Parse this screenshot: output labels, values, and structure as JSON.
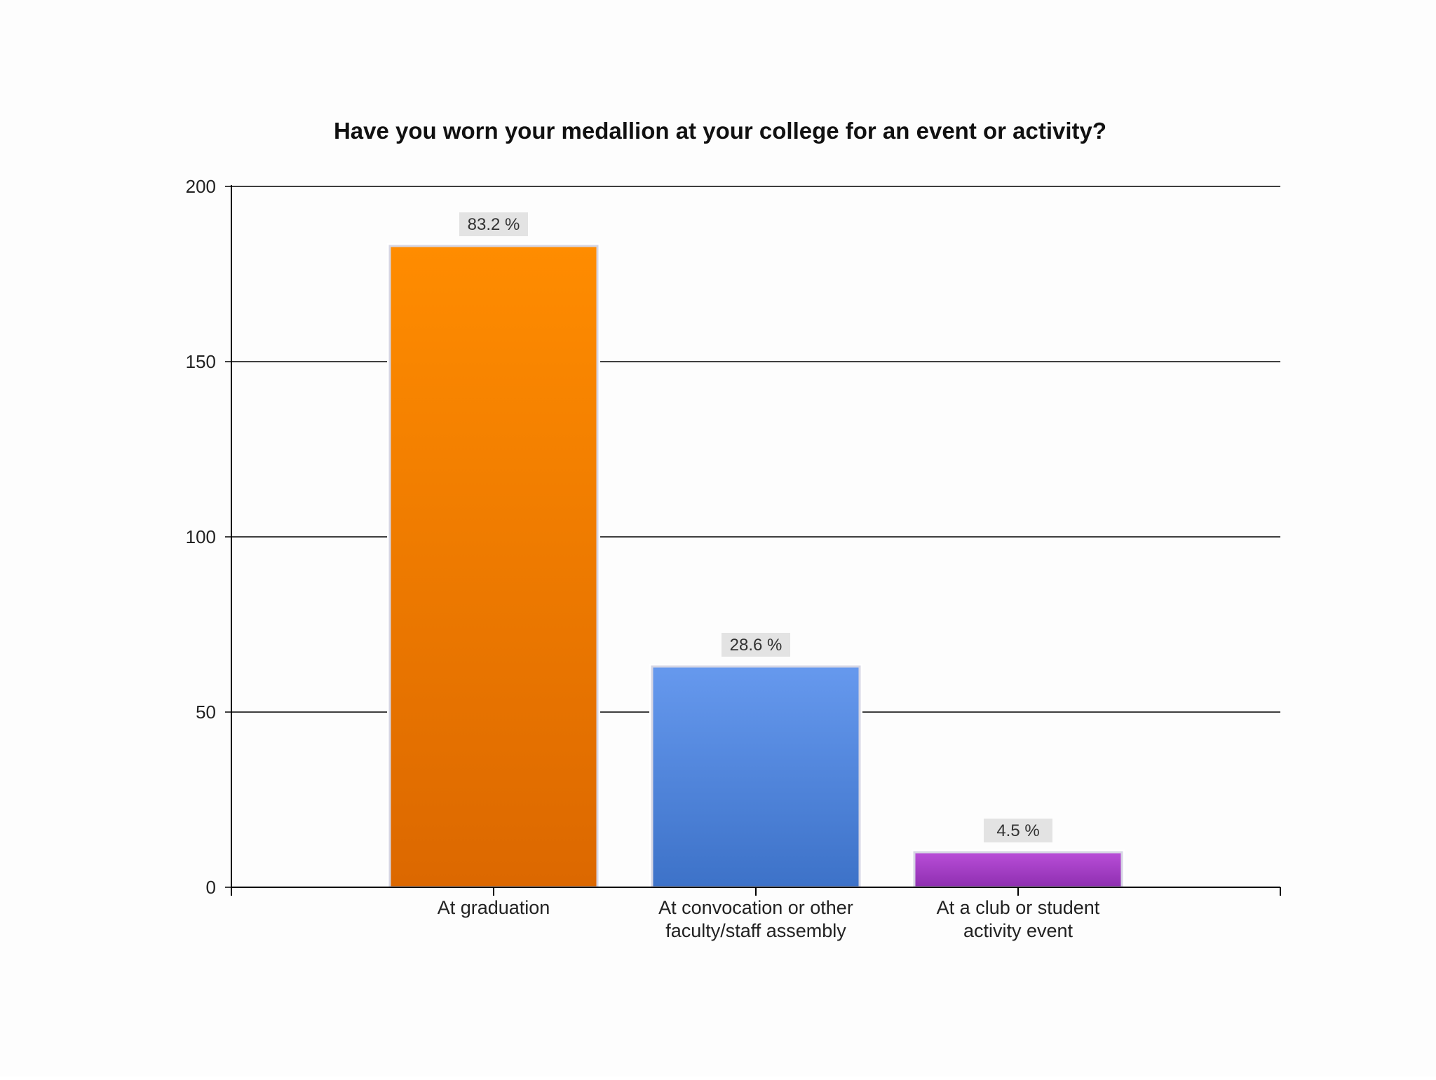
{
  "chart_data": {
    "type": "bar",
    "title": "Have you worn your medallion at your college for an event or activity?",
    "xlabel": "",
    "ylabel": "",
    "ylim": [
      0,
      200
    ],
    "yticks": [
      "0",
      "50",
      "100",
      "150",
      "200"
    ],
    "grid": true,
    "legend": "none",
    "categories": [
      [
        "At graduation"
      ],
      [
        "At convocation or other",
        "faculty/staff assembly"
      ],
      [
        "At a club or student",
        "activity event"
      ]
    ],
    "values": [
      183,
      63,
      10
    ],
    "data_labels": [
      "83.2 %",
      "28.6 %",
      "4.5 %"
    ],
    "colors": [
      [
        "#ff8c00",
        "#dc6800"
      ],
      [
        "#6699ee",
        "#3d72c8"
      ],
      [
        "#b94ed8",
        "#8e2fb0"
      ]
    ]
  }
}
